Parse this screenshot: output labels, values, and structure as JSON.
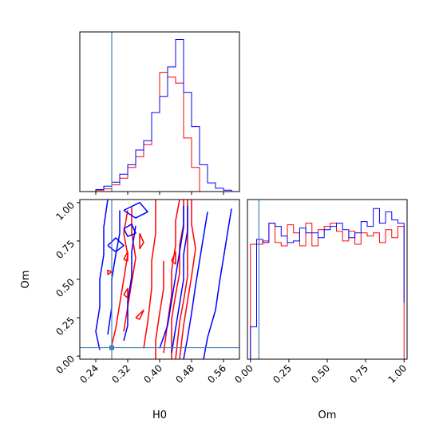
{
  "chart_data": {
    "type": "corner",
    "parameters": [
      "H0",
      "Om"
    ],
    "xlabels": {
      "h0": "H0",
      "om": "Om"
    },
    "ylabels": {
      "om": "Om"
    },
    "truth": {
      "H0": 0.28,
      "Om": 0.055
    },
    "colors": {
      "red": "#ff0000",
      "blue": "#0000ff",
      "truth": "#4682b4"
    },
    "axes": {
      "H0": {
        "range": [
          0.2,
          0.6
        ],
        "ticks": [
          0.24,
          0.32,
          0.4,
          0.48,
          0.56
        ],
        "tick_labels": [
          "0.24",
          "0.32",
          "0.40",
          "0.48",
          "0.56"
        ]
      },
      "Om": {
        "range": [
          -0.02,
          1.02
        ],
        "ticks": [
          0.0,
          0.25,
          0.5,
          0.75,
          1.0
        ],
        "tick_labels": [
          "0.00",
          "0.25",
          "0.50",
          "0.75",
          "1.00"
        ]
      }
    },
    "hist_H0": {
      "bin_edges": [
        0.2,
        0.22,
        0.24,
        0.26,
        0.28,
        0.3,
        0.32,
        0.34,
        0.36,
        0.38,
        0.4,
        0.42,
        0.44,
        0.46,
        0.48,
        0.5,
        0.52,
        0.54,
        0.56,
        0.58,
        0.6
      ],
      "series": [
        {
          "color": "red",
          "values": [
            0,
            0,
            0.2,
            0.4,
            1.0,
            2.0,
            3.6,
            5.2,
            7.0,
            11.8,
            17.8,
            17.1,
            16.2,
            8.0,
            3.6,
            0,
            0,
            0,
            0,
            0
          ]
        },
        {
          "color": "blue",
          "values": [
            0,
            0,
            0.3,
            0.8,
            1.4,
            2.6,
            4.0,
            6.2,
            7.6,
            11.8,
            14.2,
            18.6,
            22.7,
            14.8,
            9.7,
            4.0,
            1.3,
            0.5,
            0.2,
            0
          ]
        }
      ]
    },
    "hist_Om": {
      "bin_edges": [
        -0.02,
        0.0,
        0.04,
        0.08,
        0.12,
        0.16,
        0.2,
        0.24,
        0.28,
        0.32,
        0.36,
        0.4,
        0.44,
        0.48,
        0.52,
        0.56,
        0.6,
        0.64,
        0.68,
        0.72,
        0.76,
        0.8,
        0.84,
        0.88,
        0.92,
        0.96,
        1.0
      ],
      "series": [
        {
          "color": "red",
          "values": [
            0,
            0.71,
            0.71,
            0.73,
            0.84,
            0.72,
            0.7,
            0.83,
            0.78,
            0.7,
            0.84,
            0.7,
            0.8,
            0.82,
            0.84,
            0.79,
            0.73,
            0.79,
            0.71,
            0.78,
            0.76,
            0.78,
            0.72,
            0.8,
            0.75,
            0.82,
            0
          ]
        },
        {
          "color": "blue",
          "values": [
            0,
            0.2,
            0.74,
            0.72,
            0.84,
            0.82,
            0.76,
            0.72,
            0.73,
            0.81,
            0.78,
            0.78,
            0.75,
            0.8,
            0.82,
            0.84,
            0.8,
            0.75,
            0.78,
            0.85,
            0.82,
            0.93,
            0.84,
            0.91,
            0.86,
            0.84,
            0.35
          ]
        }
      ]
    },
    "contours": [
      {
        "color": "red",
        "lines": [
          [
            [
              0.32,
              0.95
            ],
            [
              0.31,
              0.8
            ],
            [
              0.32,
              0.66
            ],
            [
              0.31,
              0.5
            ],
            [
              0.3,
              0.34
            ],
            [
              0.29,
              0.18
            ],
            [
              0.28,
              0.07
            ]
          ],
          [
            [
              0.33,
              0.97
            ],
            [
              0.33,
              0.8
            ],
            [
              0.34,
              0.64
            ],
            [
              0.33,
              0.48
            ],
            [
              0.32,
              0.32
            ],
            [
              0.31,
              0.16
            ]
          ],
          [
            [
              0.39,
              1.02
            ],
            [
              0.39,
              0.8
            ],
            [
              0.38,
              0.62
            ],
            [
              0.38,
              0.44
            ],
            [
              0.37,
              0.22
            ],
            [
              0.36,
              0.05
            ]
          ],
          [
            [
              0.41,
              0.62
            ],
            [
              0.41,
              0.44
            ],
            [
              0.4,
              0.28
            ],
            [
              0.39,
              0.1
            ],
            [
              0.39,
              -0.02
            ]
          ],
          [
            [
              0.45,
              1.02
            ],
            [
              0.44,
              0.88
            ],
            [
              0.44,
              0.72
            ],
            [
              0.43,
              0.56
            ],
            [
              0.43,
              0.4
            ],
            [
              0.42,
              0.22
            ],
            [
              0.41,
              0.02
            ]
          ],
          [
            [
              0.46,
              1.02
            ],
            [
              0.46,
              0.86
            ],
            [
              0.45,
              0.72
            ],
            [
              0.45,
              0.54
            ],
            [
              0.44,
              0.4
            ],
            [
              0.43,
              0.24
            ],
            [
              0.43,
              -0.02
            ]
          ],
          [
            [
              0.47,
              1.02
            ],
            [
              0.47,
              0.86
            ],
            [
              0.47,
              0.68
            ],
            [
              0.47,
              0.52
            ],
            [
              0.46,
              0.36
            ],
            [
              0.45,
              0.22
            ],
            [
              0.44,
              -0.02
            ]
          ],
          [
            [
              0.48,
              1.02
            ],
            [
              0.48,
              0.86
            ],
            [
              0.49,
              0.7
            ],
            [
              0.48,
              0.52
            ],
            [
              0.47,
              0.36
            ],
            [
              0.46,
              0.2
            ],
            [
              0.45,
              -0.02
            ]
          ],
          [
            [
              0.35,
              0.8
            ],
            [
              0.36,
              0.74
            ],
            [
              0.35,
              0.7
            ],
            [
              0.35,
              0.8
            ]
          ],
          [
            [
              0.31,
              0.63
            ],
            [
              0.32,
              0.68
            ],
            [
              0.32,
              0.62
            ],
            [
              0.31,
              0.63
            ]
          ],
          [
            [
              0.34,
              0.25
            ],
            [
              0.36,
              0.3
            ],
            [
              0.35,
              0.24
            ],
            [
              0.34,
              0.25
            ]
          ],
          [
            [
              0.43,
              0.62
            ],
            [
              0.44,
              0.68
            ],
            [
              0.44,
              0.6
            ],
            [
              0.43,
              0.62
            ]
          ],
          [
            [
              0.31,
              0.4
            ],
            [
              0.32,
              0.44
            ],
            [
              0.32,
              0.38
            ],
            [
              0.31,
              0.4
            ]
          ],
          [
            [
              0.27,
              0.53
            ],
            [
              0.28,
              0.55
            ],
            [
              0.27,
              0.56
            ],
            [
              0.27,
              0.53
            ]
          ]
        ]
      },
      {
        "color": "blue",
        "lines": [
          [
            [
              0.27,
              1.02
            ],
            [
              0.26,
              0.84
            ],
            [
              0.26,
              0.66
            ],
            [
              0.25,
              0.5
            ],
            [
              0.25,
              0.32
            ],
            [
              0.24,
              0.16
            ],
            [
              0.25,
              0.04
            ]
          ],
          [
            [
              0.3,
              0.95
            ],
            [
              0.3,
              0.8
            ],
            [
              0.29,
              0.66
            ],
            [
              0.28,
              0.5
            ],
            [
              0.28,
              0.32
            ],
            [
              0.27,
              0.14
            ]
          ],
          [
            [
              0.34,
              0.85
            ],
            [
              0.33,
              0.68
            ],
            [
              0.33,
              0.52
            ],
            [
              0.32,
              0.36
            ],
            [
              0.32,
              0.2
            ],
            [
              0.31,
              0.1
            ]
          ],
          [
            [
              0.46,
              0.98
            ],
            [
              0.46,
              0.84
            ],
            [
              0.45,
              0.68
            ],
            [
              0.44,
              0.52
            ],
            [
              0.43,
              0.36
            ],
            [
              0.42,
              0.2
            ],
            [
              0.4,
              0.05
            ]
          ],
          [
            [
              0.47,
              0.98
            ],
            [
              0.47,
              0.82
            ],
            [
              0.46,
              0.66
            ],
            [
              0.46,
              0.5
            ],
            [
              0.45,
              0.34
            ],
            [
              0.44,
              0.18
            ],
            [
              0.43,
              0.02
            ]
          ],
          [
            [
              0.52,
              0.94
            ],
            [
              0.51,
              0.78
            ],
            [
              0.5,
              0.62
            ],
            [
              0.49,
              0.46
            ],
            [
              0.48,
              0.28
            ],
            [
              0.47,
              0.12
            ],
            [
              0.46,
              -0.02
            ]
          ],
          [
            [
              0.58,
              0.96
            ],
            [
              0.57,
              0.8
            ],
            [
              0.56,
              0.64
            ],
            [
              0.55,
              0.48
            ],
            [
              0.54,
              0.3
            ],
            [
              0.52,
              0.12
            ],
            [
              0.51,
              -0.02
            ]
          ],
          [
            [
              0.27,
              0.72
            ],
            [
              0.29,
              0.77
            ],
            [
              0.31,
              0.72
            ],
            [
              0.29,
              0.68
            ],
            [
              0.27,
              0.72
            ]
          ],
          [
            [
              0.31,
              0.83
            ],
            [
              0.33,
              0.86
            ],
            [
              0.34,
              0.8
            ],
            [
              0.32,
              0.78
            ],
            [
              0.31,
              0.83
            ]
          ],
          [
            [
              0.31,
              0.95
            ],
            [
              0.35,
              1.0
            ],
            [
              0.37,
              0.94
            ],
            [
              0.34,
              0.9
            ],
            [
              0.31,
              0.95
            ]
          ]
        ]
      }
    ]
  }
}
